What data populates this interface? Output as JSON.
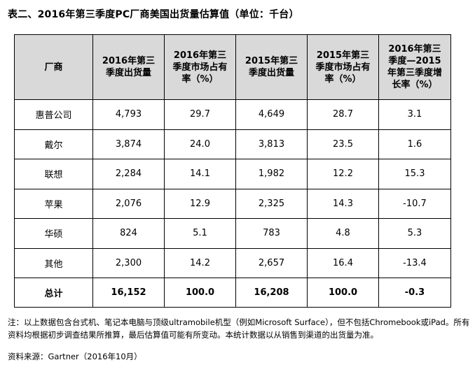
{
  "title": "表二、2016年第三季度PC厂商美国出货量估算值（单位：千台）",
  "table": {
    "headers": [
      "厂商",
      "2016年第三季度出货量",
      "2016年第三季度市场占有率（%）",
      "2015年第三季度出货量",
      "2015年第三季度市场占有率（%）",
      "2016年第三季度—2015年第三季度增长率（%）"
    ],
    "rows": [
      [
        "惠普公司",
        "4,793",
        "29.7",
        "4,649",
        "28.7",
        "3.1"
      ],
      [
        "戴尔",
        "3,874",
        "24.0",
        "3,813",
        "23.5",
        "1.6"
      ],
      [
        "联想",
        "2,284",
        "14.1",
        "1,982",
        "12.2",
        "15.3"
      ],
      [
        "苹果",
        "2,076",
        "12.9",
        "2,325",
        "14.3",
        "-10.7"
      ],
      [
        "华硕",
        "824",
        "5.1",
        "783",
        "4.8",
        "5.3"
      ],
      [
        "其他",
        "2,300",
        "14.2",
        "2,657",
        "16.4",
        "-13.4"
      ]
    ],
    "total": [
      "总计",
      "16,152",
      "100.0",
      "16,208",
      "100.0",
      "-0.3"
    ]
  },
  "note": "注：以上数据包含台式机、笔记本电脑与顶级ultramobile机型（例如Microsoft Surface），但不包括Chromebook或iPad。所有资料均根据初步调查结果所推算，最后估算值可能有所变动。本统计数据以从销售到渠道的出货量为准。",
  "source": "资料来源：Gartner（2016年10月）"
}
